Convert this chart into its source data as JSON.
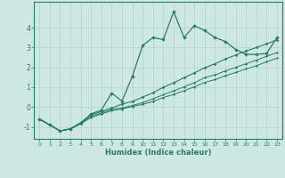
{
  "xlabel": "Humidex (Indice chaleur)",
  "x_values": [
    0,
    1,
    2,
    3,
    4,
    5,
    6,
    7,
    8,
    9,
    10,
    11,
    12,
    13,
    14,
    15,
    16,
    17,
    18,
    19,
    20,
    21,
    22,
    23
  ],
  "line1": [
    -0.6,
    -0.9,
    -1.2,
    -1.1,
    -0.8,
    -0.35,
    -0.15,
    0.7,
    0.3,
    1.55,
    3.1,
    3.5,
    3.4,
    4.8,
    3.5,
    4.1,
    3.85,
    3.5,
    3.3,
    2.9,
    2.65,
    2.65,
    2.7,
    3.5
  ],
  "line2": [
    -0.6,
    -0.9,
    -1.2,
    -1.1,
    -0.78,
    -0.4,
    -0.22,
    -0.05,
    0.15,
    0.28,
    0.5,
    0.72,
    1.0,
    1.22,
    1.48,
    1.72,
    1.98,
    2.18,
    2.42,
    2.62,
    2.82,
    3.0,
    3.18,
    3.38
  ],
  "line3": [
    -0.6,
    -0.9,
    -1.2,
    -1.1,
    -0.82,
    -0.48,
    -0.3,
    -0.12,
    -0.05,
    0.08,
    0.22,
    0.42,
    0.62,
    0.82,
    1.02,
    1.22,
    1.48,
    1.62,
    1.82,
    2.0,
    2.18,
    2.36,
    2.56,
    2.74
  ],
  "line4": [
    -0.6,
    -0.9,
    -1.2,
    -1.1,
    -0.85,
    -0.52,
    -0.35,
    -0.18,
    -0.1,
    0.03,
    0.14,
    0.28,
    0.48,
    0.64,
    0.82,
    1.02,
    1.24,
    1.38,
    1.58,
    1.74,
    1.92,
    2.08,
    2.28,
    2.46
  ],
  "color": "#2a7a6a",
  "bg_color": "#cde8e3",
  "grid_color": "#b0d4ce",
  "ylim": [
    -1.6,
    5.3
  ],
  "xlim": [
    -0.5,
    23.5
  ]
}
